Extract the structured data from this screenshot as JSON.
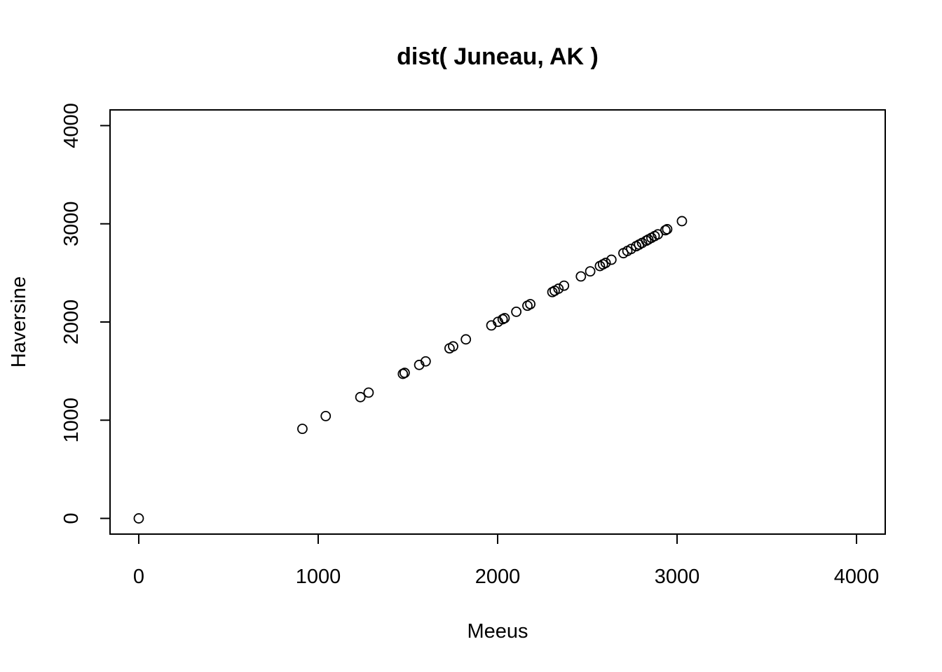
{
  "chart_data": {
    "type": "scatter",
    "title": "dist( Juneau, AK )",
    "xlabel": "Meeus",
    "ylabel": "Haversine",
    "xlim": [
      -160,
      4160
    ],
    "ylim": [
      -160,
      4160
    ],
    "x_ticks": [
      0,
      1000,
      2000,
      3000,
      4000
    ],
    "y_ticks": [
      0,
      1000,
      2000,
      3000,
      4000
    ],
    "grid": false,
    "x": [
      0,
      912,
      1042,
      1235,
      1281,
      1472,
      1482,
      1563,
      1599,
      1732,
      1752,
      1823,
      1965,
      2002,
      2028,
      2039,
      2104,
      2166,
      2182,
      2305,
      2318,
      2339,
      2370,
      2464,
      2516,
      2570,
      2587,
      2602,
      2634,
      2701,
      2723,
      2744,
      2772,
      2788,
      2805,
      2828,
      2840,
      2857,
      2875,
      2893,
      2935,
      2945,
      3027
    ],
    "y": [
      0,
      912,
      1042,
      1235,
      1281,
      1472,
      1482,
      1563,
      1599,
      1732,
      1752,
      1823,
      1965,
      2002,
      2028,
      2039,
      2104,
      2166,
      2182,
      2305,
      2318,
      2339,
      2370,
      2464,
      2516,
      2570,
      2587,
      2602,
      2634,
      2701,
      2723,
      2744,
      2772,
      2788,
      2805,
      2828,
      2840,
      2857,
      2875,
      2893,
      2935,
      2945,
      3027
    ]
  }
}
